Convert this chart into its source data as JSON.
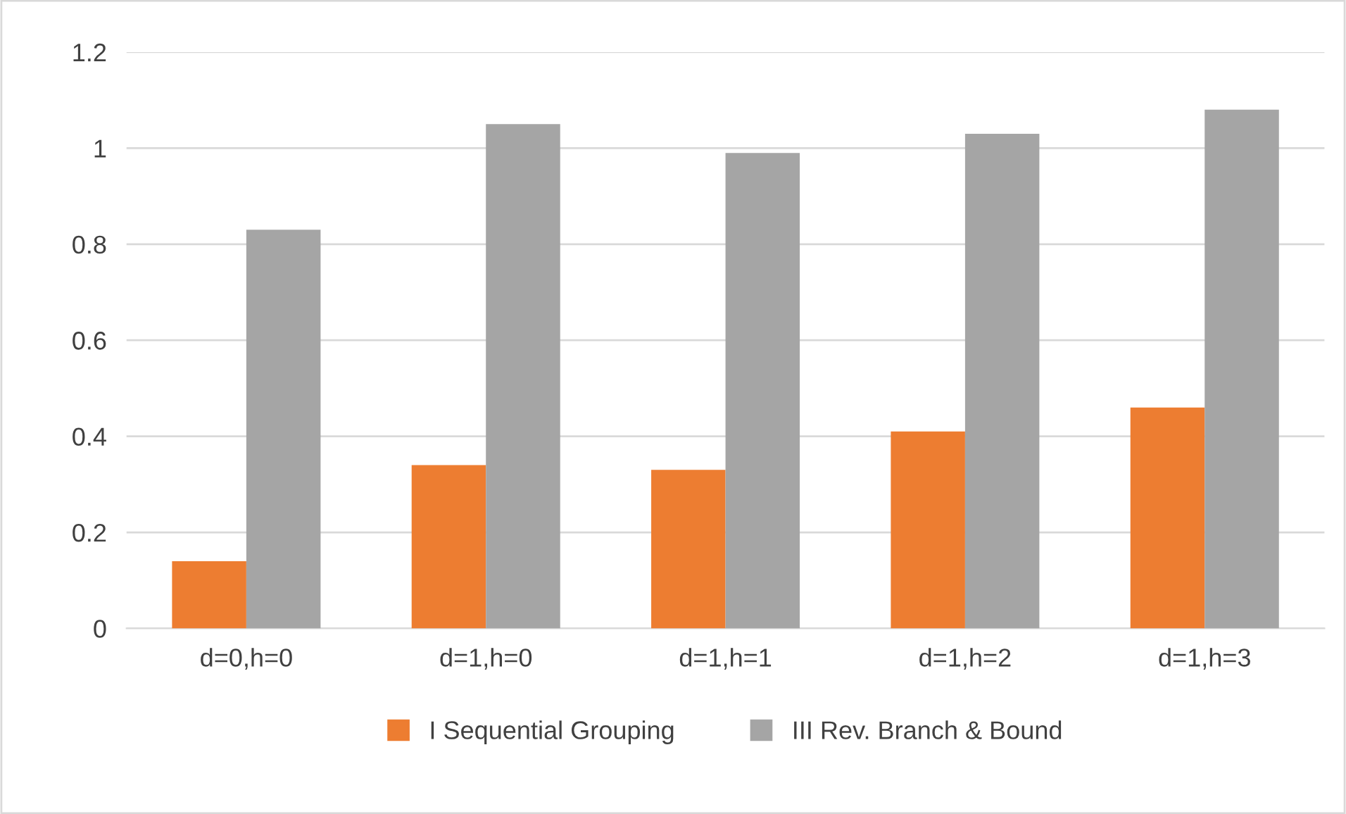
{
  "chart_data": {
    "type": "bar",
    "categories": [
      "d=0,h=0",
      "d=1,h=0",
      "d=1,h=1",
      "d=1,h=2",
      "d=1,h=3"
    ],
    "series": [
      {
        "name": "I Sequential Grouping",
        "color": "#ed7d31",
        "values": [
          0.14,
          0.34,
          0.33,
          0.41,
          0.46
        ]
      },
      {
        "name": "III Rev. Branch & Bound",
        "color": "#a5a5a5",
        "values": [
          0.83,
          1.05,
          0.99,
          1.03,
          1.08
        ]
      }
    ],
    "ylim": [
      0,
      1.2
    ],
    "yticks": [
      0,
      0.2,
      0.4,
      0.6,
      0.8,
      1,
      1.2
    ],
    "grid": "y",
    "legend": "bottom"
  }
}
